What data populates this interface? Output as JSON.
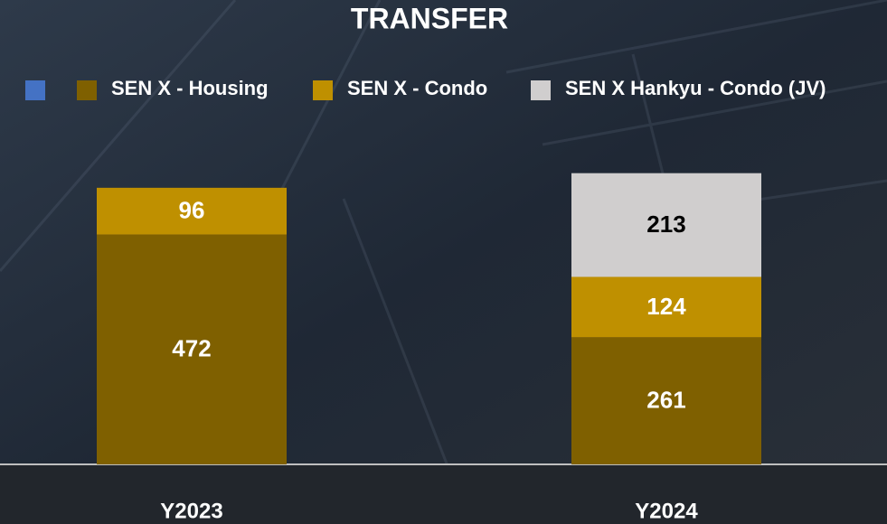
{
  "chart_data": {
    "type": "stacked-bar",
    "title": "TRANSFER",
    "categories": [
      "Y2023",
      "Y2024"
    ],
    "series": [
      {
        "name": "SEN X - Housing",
        "color": "#7f6000",
        "values": [
          472,
          261
        ]
      },
      {
        "name": "SEN X - Condo",
        "color": "#bf9000",
        "values": [
          96,
          124
        ]
      },
      {
        "name": "SEN X Hankyu - Condo (JV)",
        "color": "#d0cece",
        "values": [
          null,
          213
        ]
      }
    ]
  }
}
